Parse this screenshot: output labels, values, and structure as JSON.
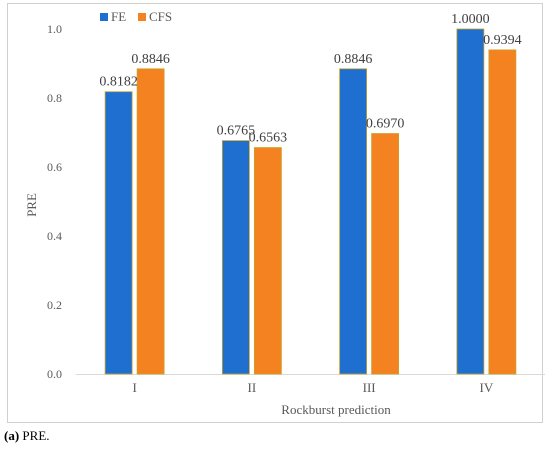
{
  "chart_data": {
    "type": "bar",
    "categories": [
      "I",
      "II",
      "III",
      "IV"
    ],
    "series": [
      {
        "name": "FE",
        "values": [
          0.8182,
          0.6765,
          0.8846,
          1.0
        ],
        "labels": [
          "0.8182",
          "0.6765",
          "0.8846",
          "1.0000"
        ],
        "color": "#1f6fd1"
      },
      {
        "name": "CFS",
        "values": [
          0.8846,
          0.6563,
          0.697,
          0.9394
        ],
        "labels": [
          "0.8846",
          "0.6563",
          "0.6970",
          "0.9394"
        ],
        "color": "#f58220"
      }
    ],
    "title": "",
    "xlabel": "Rockburst prediction",
    "ylabel": "PRE",
    "ylim": [
      0,
      1.0
    ],
    "yticks": [
      "0.0",
      "0.2",
      "0.4",
      "0.6",
      "0.8",
      "1.0"
    ],
    "ytick_values": [
      0,
      0.2,
      0.4,
      0.6,
      0.8,
      1.0
    ],
    "grid": false,
    "legend_position": "top-left",
    "bar_edge_color": "#c9a227"
  },
  "caption": {
    "label": "(a)",
    "text": " PRE."
  }
}
